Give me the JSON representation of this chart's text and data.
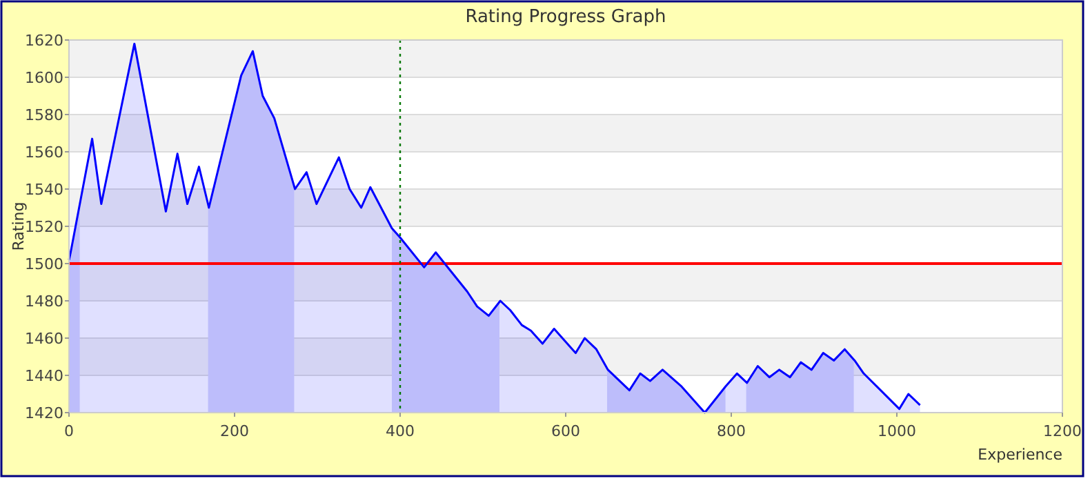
{
  "chart_data": {
    "type": "area",
    "title": "Rating Progress Graph",
    "xlabel": "Experience",
    "ylabel": "Rating",
    "x": [
      0,
      2,
      28,
      39,
      79,
      117,
      131,
      143,
      157,
      169,
      208,
      222,
      234,
      248,
      273,
      287,
      299,
      326,
      339,
      353,
      364,
      390,
      400,
      429,
      443,
      481,
      493,
      507,
      521,
      533,
      547,
      558,
      572,
      586,
      612,
      623,
      637,
      651,
      677,
      690,
      702,
      717,
      740,
      768,
      793,
      807,
      819,
      832,
      846,
      858,
      871,
      884,
      897,
      911,
      924,
      937,
      949,
      960,
      1003,
      1014,
      1028
    ],
    "series": [
      {
        "color": "#0000ff",
        "values": [
          1502,
          1506,
          1567,
          1532,
          1618,
          1528,
          1559,
          1532,
          1552,
          1530,
          1601,
          1614,
          1590,
          1578,
          1540,
          1549,
          1532,
          1557,
          1540,
          1530,
          1541,
          1519,
          1514,
          1498,
          1506,
          1485,
          1477,
          1472,
          1480,
          1475,
          1467,
          1464,
          1457,
          1465,
          1452,
          1460,
          1454,
          1443,
          1432,
          1441,
          1437,
          1443,
          1434,
          1420,
          1434,
          1441,
          1436,
          1445,
          1439,
          1443,
          1439,
          1447,
          1443,
          1452,
          1448,
          1454,
          1448,
          1441,
          1422,
          1430,
          1424
        ]
      }
    ],
    "xlim": [
      0,
      1200
    ],
    "ylim": [
      1420,
      1620
    ],
    "xticks": [
      0,
      200,
      400,
      600,
      800,
      1000,
      1200
    ],
    "yticks": [
      1420,
      1440,
      1460,
      1480,
      1500,
      1520,
      1540,
      1560,
      1580,
      1600,
      1620
    ],
    "grid": "y",
    "ref_lines": [
      {
        "axis": "y",
        "value": 1500,
        "color": "#ff0000",
        "line_style": "solid"
      },
      {
        "axis": "x",
        "value": 400,
        "color": "#007700",
        "line_style": "dotted"
      }
    ],
    "bands": [
      {
        "axis": "x",
        "from": 0,
        "to": 13,
        "color": "#d8d8fb"
      },
      {
        "axis": "x",
        "from": 168,
        "to": 272,
        "color": "#d8d8fb"
      },
      {
        "axis": "x",
        "from": 390,
        "to": 520,
        "color": "#d8d8fb"
      },
      {
        "axis": "x",
        "from": 650,
        "to": 793,
        "color": "#d8d8fb"
      },
      {
        "axis": "x",
        "from": 818,
        "to": 948,
        "color": "#d8d8fb"
      }
    ]
  }
}
